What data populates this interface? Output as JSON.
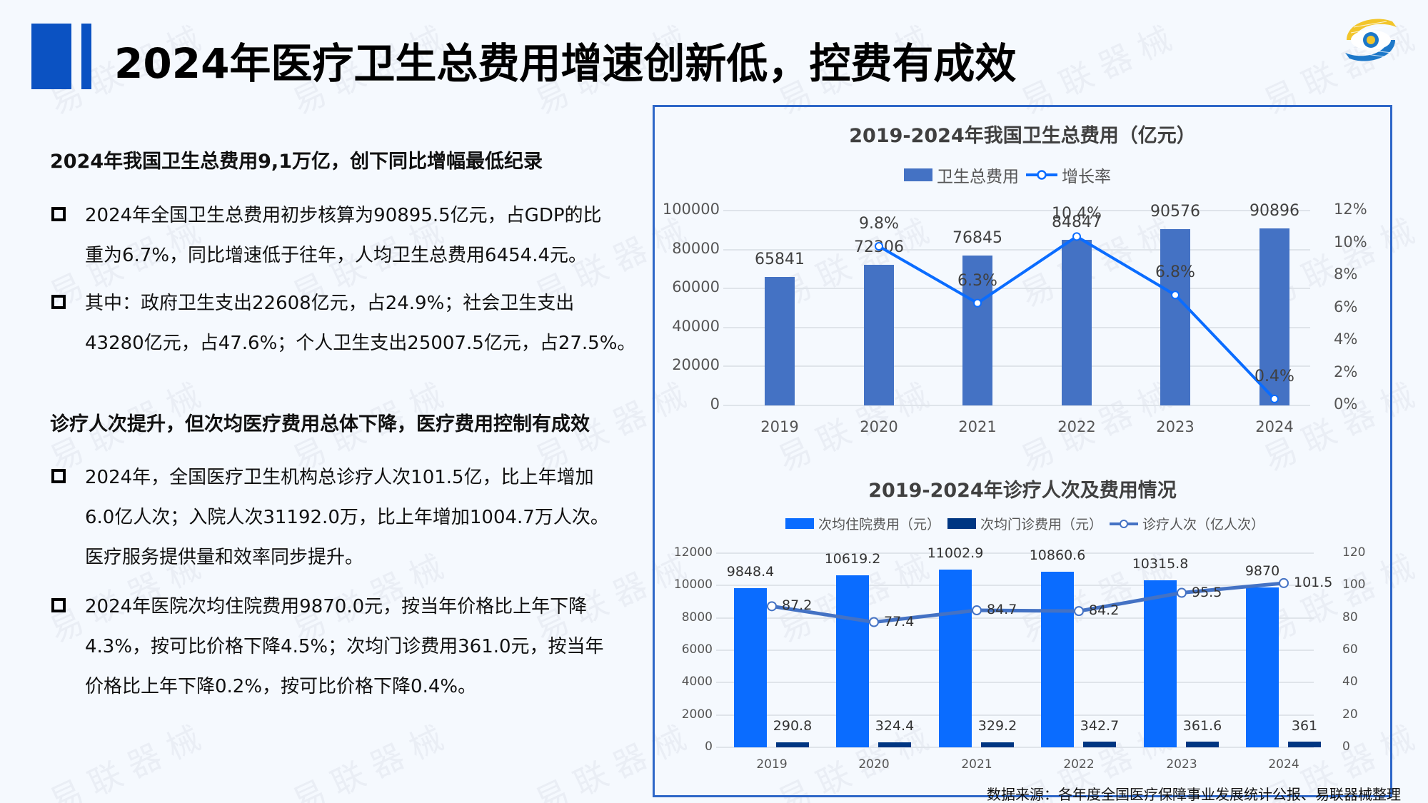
{
  "header": {
    "title": "2024年医疗卫生总费用增速创新低，控费有成效",
    "logo": "globe-eye-logo-icon"
  },
  "left": {
    "section1": {
      "heading": "2024年我国卫生总费用9,1万亿，创下同比增幅最低纪录",
      "bullets": [
        "2024年全国卫生总费用初步核算为90895.5亿元，占GDP的比\n重为6.7%，同比增速低于往年，人均卫生总费用6454.4元。",
        "其中：政府卫生支出22608亿元，占24.9%；社会卫生支出\n43280亿元，占47.6%；个人卫生支出25007.5亿元，占27.5%。"
      ]
    },
    "section2": {
      "heading": "诊疗人次提升，但次均医疗费用总体下降，医疗费用控制有成效",
      "bullets": [
        "2024年，全国医疗卫生机构总诊疗人次101.5亿，比上年增加\n6.0亿人次；入院人次31192.0万，比上年增加1004.7万人次。\n医疗服务提供量和效率同步提升。",
        "2024年医院次均住院费用9870.0元，按当年价格比上年下降\n4.3%，按可比价格下降4.5%；次均门诊费用361.0元，按当年\n价格比上年下降0.2%，按可比价格下降0.4%。"
      ]
    }
  },
  "colors": {
    "accent": "#0b52c2",
    "panel_border": "#2e67c8",
    "bar_total": "#4472c4",
    "line_growth": "#0a6cff",
    "bar_inpatient": "#0a6cff",
    "bar_outpatient": "#003682",
    "line_visits": "#4472c4"
  },
  "chart_data": [
    {
      "type": "bar+line",
      "title": "2019-2024年我国卫生总费用（亿元）",
      "categories": [
        "2019",
        "2020",
        "2021",
        "2022",
        "2023",
        "2024"
      ],
      "series": [
        {
          "name": "卫生总费用",
          "type": "bar",
          "axis": "left",
          "values": [
            65841,
            72306,
            76845,
            84847,
            90576,
            90896
          ],
          "labels": [
            "65841",
            "72306",
            "76845",
            "84847",
            "90576",
            "90896"
          ]
        },
        {
          "name": "增长率",
          "type": "line",
          "axis": "right",
          "values": [
            null,
            9.8,
            6.3,
            10.4,
            6.8,
            0.4
          ],
          "labels": [
            "",
            "9.8%",
            "6.3%",
            "10.4%",
            "6.8%",
            "0.4%"
          ]
        }
      ],
      "left_axis": {
        "ticks": [
          "100000",
          "80000",
          "60000",
          "40000",
          "20000",
          "0"
        ],
        "range": [
          0,
          100000
        ]
      },
      "right_axis": {
        "ticks": [
          "12%",
          "10%",
          "8%",
          "6%",
          "4%",
          "2%",
          "0%"
        ],
        "range": [
          0,
          12
        ]
      },
      "legend_position": "top",
      "grid": true
    },
    {
      "type": "bar+line",
      "title": "2019-2024年诊疗人次及费用情况",
      "categories": [
        "2019",
        "2020",
        "2021",
        "2022",
        "2023",
        "2024"
      ],
      "series": [
        {
          "name": "次均住院费用（元）",
          "type": "bar",
          "axis": "left",
          "values": [
            9848.4,
            10619.2,
            11002.9,
            10860.6,
            10315.8,
            9870
          ],
          "labels": [
            "9848.4",
            "10619.2",
            "11002.9",
            "10860.6",
            "10315.8",
            "9870"
          ]
        },
        {
          "name": "次均门诊费用（元）",
          "type": "bar",
          "axis": "left",
          "values": [
            290.8,
            324.4,
            329.2,
            342.7,
            361.6,
            361
          ],
          "labels": [
            "290.8",
            "324.4",
            "329.2",
            "342.7",
            "361.6",
            "361"
          ]
        },
        {
          "name": "诊疗人次（亿人次）",
          "type": "line",
          "axis": "right",
          "values": [
            87.2,
            77.4,
            84.7,
            84.2,
            95.5,
            101.5
          ],
          "labels": [
            "87.2",
            "77.4",
            "84.7",
            "84.2",
            "95.5",
            "101.5"
          ]
        }
      ],
      "left_axis": {
        "ticks": [
          "12000",
          "10000",
          "8000",
          "6000",
          "4000",
          "2000",
          "0"
        ],
        "range": [
          0,
          12000
        ]
      },
      "right_axis": {
        "ticks": [
          "120",
          "100",
          "80",
          "60",
          "40",
          "20",
          "0"
        ],
        "range": [
          0,
          120
        ]
      },
      "legend_position": "top",
      "grid": true
    }
  ],
  "footer": {
    "source": "数据来源：各年度全国医疗保障事业发展统计公报、易联器械整理"
  },
  "watermark": "易联器械"
}
